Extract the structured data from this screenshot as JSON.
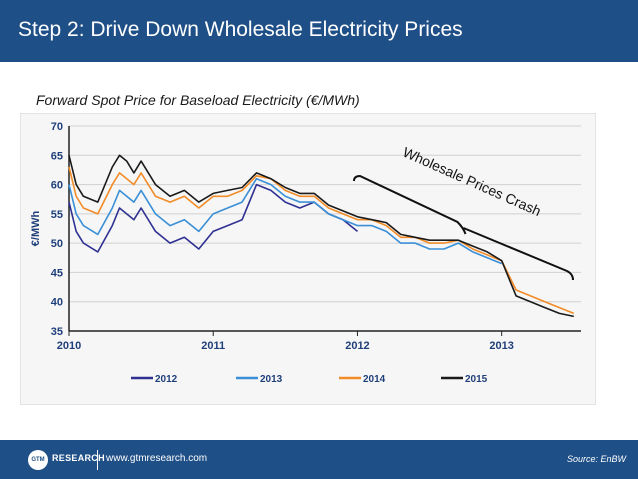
{
  "slide": {
    "title": "Step 2: Drive Down Wholesale Electricity Prices",
    "subtitle": "Forward Spot Price for Baseload Electricity (€/MWh)",
    "annotation": "Wholesale Prices Crash"
  },
  "footer": {
    "logo_mark": "GTM",
    "logo_text": "RESEARCH",
    "url": "www.gtmresearch.com",
    "source": "Source: EnBW"
  },
  "colors": {
    "header": "#1f4f87",
    "series_2012": "#2e3192",
    "series_2013": "#3a8fd6",
    "series_2014": "#f28c28",
    "series_2015": "#1a1a1a"
  },
  "chart_data": {
    "type": "line",
    "title": "Forward Spot Price for Baseload Electricity (€/MWh)",
    "ylabel": "€/MWh",
    "xlabel": "",
    "ylim": [
      35,
      70
    ],
    "xlim": [
      2010,
      2013.55
    ],
    "yticks": [
      "35",
      "40",
      "45",
      "50",
      "55",
      "60",
      "65",
      "70"
    ],
    "xticks": [
      "2010",
      "2011",
      "2012",
      "2013"
    ],
    "grid": true,
    "legend_position": "bottom",
    "series": [
      {
        "name": "2012",
        "color": "#2e3192",
        "x": [
          2010.0,
          2010.05,
          2010.1,
          2010.2,
          2010.3,
          2010.35,
          2010.4,
          2010.45,
          2010.5,
          2010.6,
          2010.7,
          2010.8,
          2010.9,
          2011.0,
          2011.1,
          2011.2,
          2011.3,
          2011.4,
          2011.5,
          2011.6,
          2011.7,
          2011.8,
          2011.9,
          2012.0
        ],
        "values": [
          57,
          52,
          50,
          48.5,
          53,
          56,
          55,
          54,
          56,
          52,
          50,
          51,
          49,
          52,
          53,
          54,
          60,
          59,
          57,
          56,
          57,
          55,
          54,
          52
        ]
      },
      {
        "name": "2013",
        "color": "#3a8fd6",
        "x": [
          2010.0,
          2010.05,
          2010.1,
          2010.2,
          2010.3,
          2010.35,
          2010.4,
          2010.45,
          2010.5,
          2010.6,
          2010.7,
          2010.8,
          2010.9,
          2011.0,
          2011.1,
          2011.2,
          2011.3,
          2011.4,
          2011.5,
          2011.6,
          2011.7,
          2011.8,
          2011.9,
          2012.0,
          2012.1,
          2012.2,
          2012.3,
          2012.4,
          2012.5,
          2012.6,
          2012.7,
          2012.8,
          2012.9,
          2013.0
        ],
        "values": [
          60,
          55,
          53,
          51.5,
          56,
          59,
          58,
          57,
          59,
          55,
          53,
          54,
          52,
          55,
          56,
          57,
          61,
          60,
          58,
          57,
          57,
          55,
          54,
          53,
          53,
          52,
          50,
          50,
          49,
          49,
          50,
          48.5,
          47.5,
          46.5
        ]
      },
      {
        "name": "2014",
        "color": "#f28c28",
        "x": [
          2010.0,
          2010.05,
          2010.1,
          2010.2,
          2010.3,
          2010.35,
          2010.4,
          2010.45,
          2010.5,
          2010.6,
          2010.7,
          2010.8,
          2010.9,
          2011.0,
          2011.1,
          2011.2,
          2011.3,
          2011.4,
          2011.5,
          2011.6,
          2011.7,
          2011.8,
          2011.9,
          2012.0,
          2012.1,
          2012.2,
          2012.3,
          2012.4,
          2012.5,
          2012.6,
          2012.7,
          2012.8,
          2012.9,
          2013.0,
          2013.1,
          2013.2,
          2013.3,
          2013.4,
          2013.5
        ],
        "values": [
          63,
          58,
          56,
          55,
          60,
          62,
          61,
          60,
          62,
          58,
          57,
          58,
          56,
          58,
          58,
          59,
          61.5,
          61,
          59,
          58,
          58,
          56,
          55,
          54,
          54,
          53,
          51,
          51,
          50,
          50,
          50.5,
          49,
          48,
          47,
          42,
          41,
          40,
          39,
          38
        ]
      },
      {
        "name": "2015",
        "color": "#1a1a1a",
        "x": [
          2010.0,
          2010.05,
          2010.1,
          2010.2,
          2010.3,
          2010.35,
          2010.4,
          2010.45,
          2010.5,
          2010.6,
          2010.7,
          2010.8,
          2010.9,
          2011.0,
          2011.1,
          2011.2,
          2011.3,
          2011.4,
          2011.5,
          2011.6,
          2011.7,
          2011.8,
          2011.9,
          2012.0,
          2012.1,
          2012.2,
          2012.3,
          2012.4,
          2012.5,
          2012.6,
          2012.7,
          2012.8,
          2012.9,
          2013.0,
          2013.1,
          2013.2,
          2013.3,
          2013.4,
          2013.5
        ],
        "values": [
          65,
          60,
          58,
          57,
          63,
          65,
          64,
          62,
          64,
          60,
          58,
          59,
          57,
          58.5,
          59,
          59.5,
          62,
          61,
          59.5,
          58.5,
          58.5,
          56.5,
          55.5,
          54.5,
          54,
          53.5,
          51.5,
          51,
          50.5,
          50.5,
          50.5,
          49.5,
          48.5,
          47,
          41,
          40,
          39,
          38,
          37.5
        ]
      }
    ]
  }
}
